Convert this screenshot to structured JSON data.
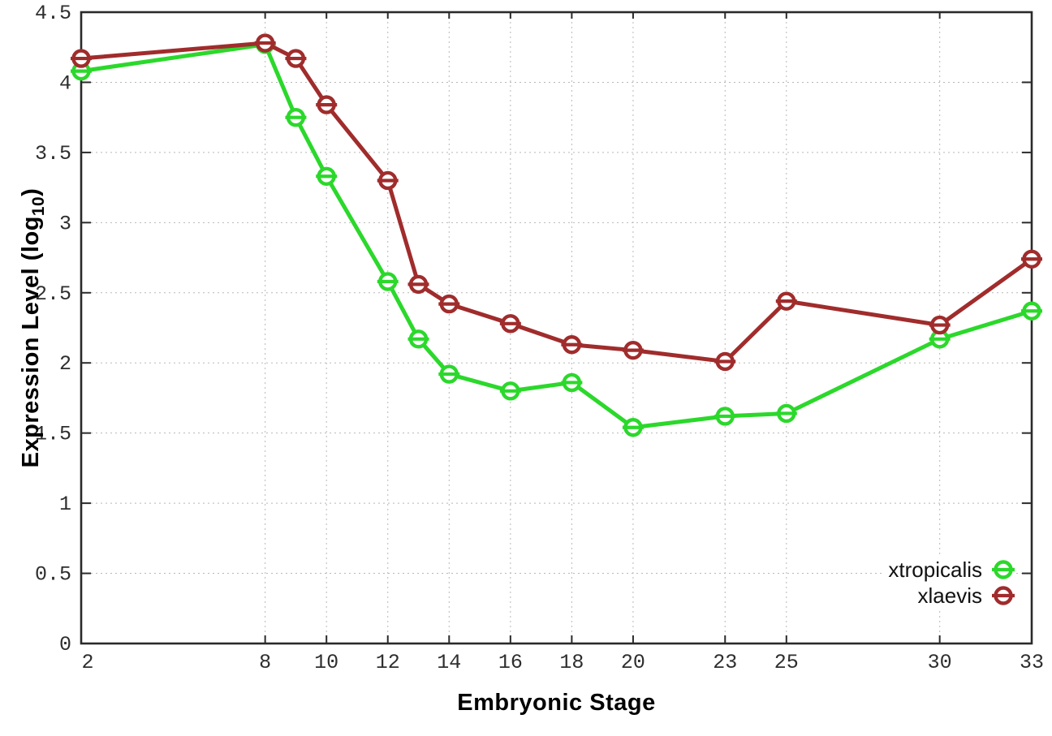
{
  "chart_data": {
    "type": "line",
    "xlabel": "Embryonic Stage",
    "ylabel": "Expression Level (log10)",
    "ylabel_parts": {
      "main": "Expression Level (log",
      "sub": "10",
      "close": ")"
    },
    "x": [
      2,
      8,
      9,
      10,
      12,
      13,
      14,
      16,
      18,
      20,
      23,
      25,
      30,
      33
    ],
    "series": [
      {
        "name": "xtropicalis",
        "color": "#2bd82b",
        "values": [
          4.08,
          4.27,
          3.75,
          3.33,
          2.58,
          2.17,
          1.92,
          1.8,
          1.86,
          1.54,
          1.62,
          1.64,
          2.17,
          2.37
        ]
      },
      {
        "name": "xlaevis",
        "color": "#a02c2c",
        "values": [
          4.17,
          4.28,
          4.17,
          3.84,
          3.3,
          2.56,
          2.42,
          2.28,
          2.13,
          2.09,
          2.01,
          2.44,
          2.27,
          2.74
        ]
      }
    ],
    "xlim": [
      2,
      33
    ],
    "ylim": [
      0,
      4.5
    ],
    "x_tick_labels": [
      "2",
      "8",
      "10",
      "12",
      "14",
      "16",
      "18",
      "20",
      "23",
      "25",
      "30",
      "33"
    ],
    "x_tick_values": [
      2,
      8,
      10,
      12,
      14,
      16,
      18,
      20,
      23,
      25,
      30,
      33
    ],
    "y_tick_labels": [
      "0",
      "0.5",
      "1",
      "1.5",
      "2",
      "2.5",
      "3",
      "3.5",
      "4",
      "4.5"
    ],
    "y_tick_values": [
      0,
      0.5,
      1,
      1.5,
      2,
      2.5,
      3,
      3.5,
      4,
      4.5
    ],
    "grid": true,
    "legend_position": "inside-bottom-right",
    "marker": "open-circle-errorbar",
    "colors": {
      "border": "#2a2a2a",
      "gridline": "#b8b8b8",
      "tick_label": "#2e2e2e"
    }
  }
}
